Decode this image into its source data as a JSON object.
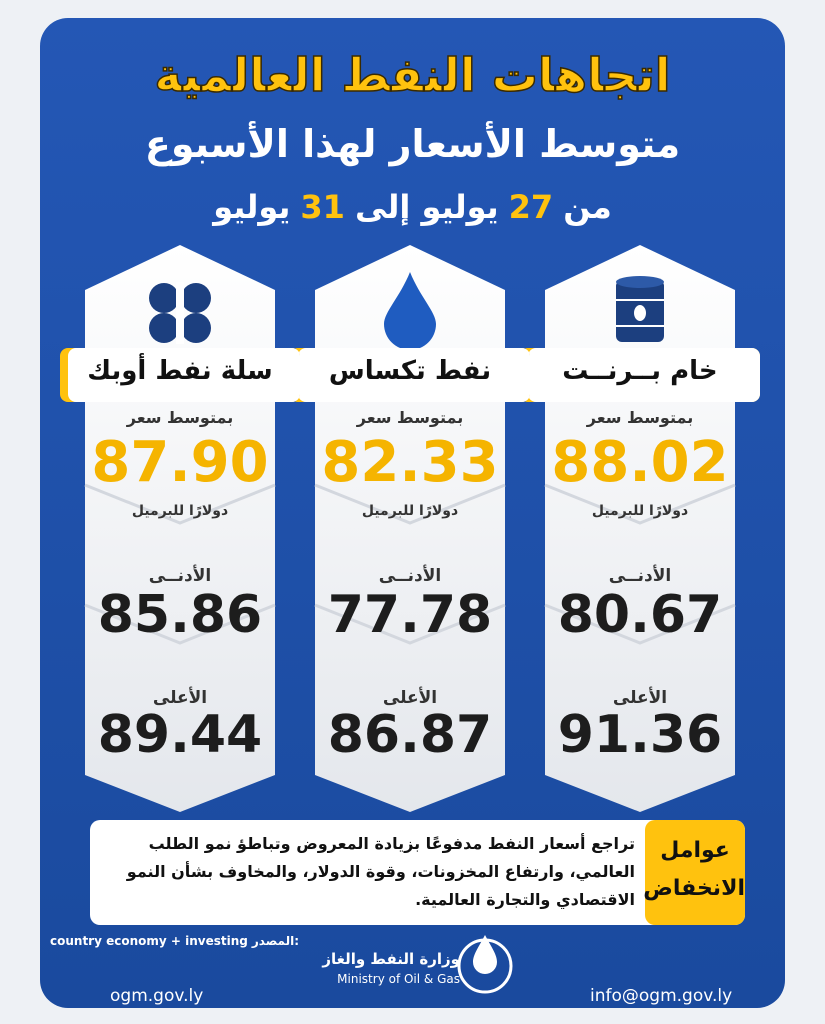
{
  "header": {
    "title": "اتجاهات النفط العالمية",
    "subtitle": "متوسط الأسعار لهذا الأسبوع",
    "date_range": [
      {
        "text": "من"
      },
      {
        "text": "27",
        "highlight": true
      },
      {
        "text": "يوليو إلى"
      },
      {
        "text": "31",
        "highlight": true
      },
      {
        "text": "يوليو"
      }
    ]
  },
  "cards": [
    {
      "icon": "barrel",
      "name": "خام بــرنــت",
      "avg_label": "بمتوسط سعر",
      "avg": "88.02",
      "unit": "دولارًا للبرميل",
      "low_label": "الأدنــى",
      "low": "80.67",
      "high_label": "الأعلى",
      "high": "91.36"
    },
    {
      "icon": "drop",
      "name": "نفط تكساس",
      "avg_label": "بمتوسط سعر",
      "avg": "82.33",
      "unit": "دولارًا للبرميل",
      "low_label": "الأدنــى",
      "low": "77.78",
      "high_label": "الأعلى",
      "high": "86.87"
    },
    {
      "icon": "opec",
      "name": "سلة نفط أوبك",
      "avg_label": "بمتوسط سعر",
      "avg": "87.90",
      "unit": "دولارًا للبرميل",
      "low_label": "الأدنــى",
      "low": "85.86",
      "high_label": "الأعلى",
      "high": "89.44"
    }
  ],
  "factors": {
    "label": "عوامل الانخفاض",
    "text": "تراجع أسعار النفط مدفوعًا بزيادة المعروض وتباطؤ نمو الطلب العالمي، وارتفاع المخزونات، وقوة الدولار، والمخاوف بشأن النمو الاقتصادي والتجارة العالمية."
  },
  "footer": {
    "source_label": "المصدر:",
    "source": "country economy + investing",
    "ministry_ar": "وزارة النفط والغاز",
    "ministry_en": "Ministry of Oil & Gas",
    "website": "ogm.gov.ly",
    "email": "info@ogm.gov.ly"
  }
}
